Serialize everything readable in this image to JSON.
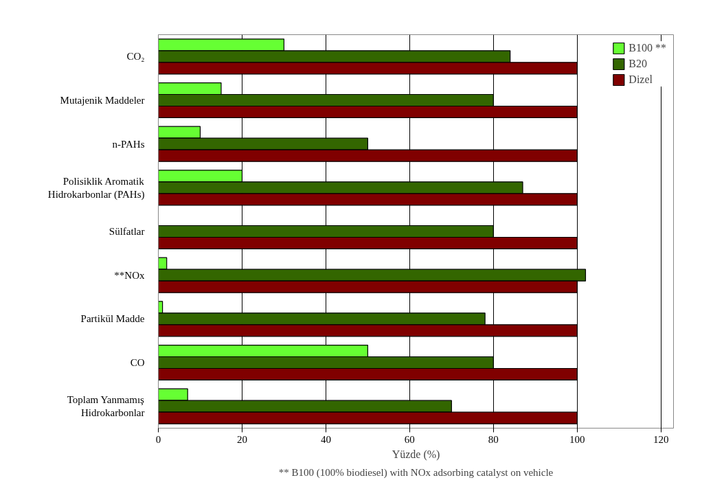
{
  "chart_data": {
    "type": "bar",
    "orientation": "horizontal",
    "categories": [
      "CO₂",
      "Mutajenik Maddeler",
      "n-PAHs",
      "Polisiklik Aromatik\nHidrokarbonlar (PAHs)",
      "Sülfatlar",
      "**NOx",
      "Partikül Madde",
      "CO",
      "Toplam Yanmamış\nHidrokarbonlar"
    ],
    "series": [
      {
        "name": "B100 **",
        "color": "#66ff33",
        "values": [
          30,
          15,
          10,
          20,
          null,
          2,
          1,
          50,
          7
        ]
      },
      {
        "name": "B20",
        "color": "#336600",
        "values": [
          84,
          80,
          50,
          87,
          80,
          102,
          78,
          80,
          70
        ]
      },
      {
        "name": "Dizel",
        "color": "#800000",
        "values": [
          100,
          100,
          100,
          100,
          100,
          100,
          100,
          100,
          100
        ]
      }
    ],
    "xlabel": "Yüzde (%)",
    "xlim": [
      0,
      123
    ],
    "xticks": [
      0,
      20,
      40,
      60,
      80,
      100,
      120
    ],
    "grid": "x",
    "legend": "top right",
    "annotations": [
      "** B100 (100% biodiesel) with NOx adsorbing catalyst on vehicle"
    ]
  }
}
